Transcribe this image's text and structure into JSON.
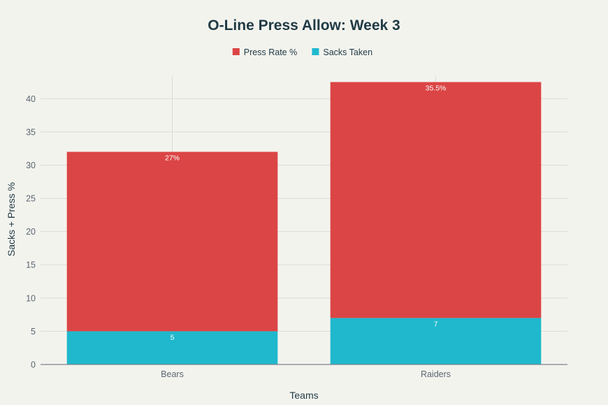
{
  "chart_data": {
    "type": "bar",
    "stacked": true,
    "title": "O-Line Press Allow: Week 3",
    "xlabel": "Teams",
    "ylabel": "Sacks + Press %",
    "categories": [
      "Bears",
      "Raiders"
    ],
    "series": [
      {
        "name": "Sacks Taken",
        "values": [
          5,
          7
        ],
        "labels": [
          "5",
          "7"
        ],
        "color": "#1fb8cd"
      },
      {
        "name": "Press Rate %",
        "values": [
          27,
          35.5
        ],
        "labels": [
          "27%",
          "35.5%"
        ],
        "color": "#db4545"
      }
    ],
    "legend_order": [
      "Press Rate %",
      "Sacks Taken"
    ],
    "ylim": [
      0,
      43.5
    ],
    "yticks": [
      0,
      5,
      10,
      15,
      20,
      25,
      30,
      35,
      40
    ],
    "grid": true,
    "legend_position": "top-center"
  }
}
